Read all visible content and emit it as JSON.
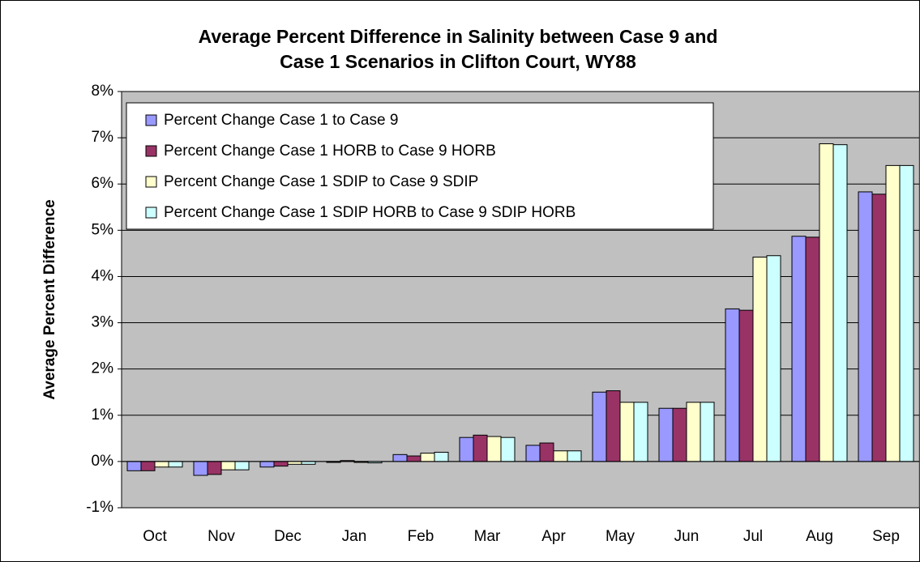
{
  "chart_data": {
    "type": "bar",
    "title": "Average Percent Difference in Salinity between Case 9 and",
    "title_line2": "Case 1 Scenarios in Clifton Court, WY88",
    "y_label": "Average Percent Difference",
    "categories": [
      "Oct",
      "Nov",
      "Dec",
      "Jan",
      "Feb",
      "Mar",
      "Apr",
      "May",
      "Jun",
      "Jul",
      "Aug",
      "Sep"
    ],
    "series": [
      {
        "name": "Percent Change Case 1 to Case 9",
        "color": "#9999ff",
        "values": [
          -0.2,
          -0.3,
          -0.12,
          -0.02,
          0.15,
          0.52,
          0.35,
          1.5,
          1.15,
          3.3,
          4.87,
          5.83
        ]
      },
      {
        "name": "Percent Change Case 1 HORB to Case 9 HORB",
        "color": "#993366",
        "values": [
          -0.2,
          -0.28,
          -0.1,
          0.02,
          0.12,
          0.57,
          0.4,
          1.53,
          1.15,
          3.27,
          4.85,
          5.78
        ]
      },
      {
        "name": "Percent Change Case 1 SDIP to Case 9 SDIP",
        "color": "#ffffcc",
        "values": [
          -0.12,
          -0.18,
          -0.06,
          -0.02,
          0.18,
          0.54,
          0.23,
          1.28,
          1.28,
          4.42,
          6.87,
          6.4
        ]
      },
      {
        "name": "Percent Change Case 1 SDIP HORB to Case 9 SDIP HORB",
        "color": "#ccffff",
        "values": [
          -0.12,
          -0.18,
          -0.06,
          -0.03,
          0.2,
          0.52,
          0.23,
          1.28,
          1.28,
          4.45,
          6.85,
          6.4
        ]
      }
    ],
    "ylim": [
      -1,
      8
    ],
    "yticks": [
      {
        "value": -1,
        "label": "-1%"
      },
      {
        "value": 0,
        "label": "0%"
      },
      {
        "value": 1,
        "label": "1%"
      },
      {
        "value": 2,
        "label": "2%"
      },
      {
        "value": 3,
        "label": "3%"
      },
      {
        "value": 4,
        "label": "4%"
      },
      {
        "value": 5,
        "label": "5%"
      },
      {
        "value": 6,
        "label": "6%"
      },
      {
        "value": 7,
        "label": "7%"
      },
      {
        "value": 8,
        "label": "8%"
      }
    ],
    "grid": true,
    "legend": "top-left",
    "plot_background": "#c0c0c0"
  }
}
